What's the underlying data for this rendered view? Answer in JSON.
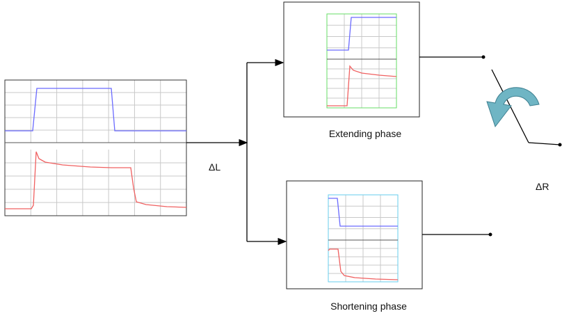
{
  "input_label": "ΔL",
  "output_label": "ΔR",
  "extending": {
    "caption": "Extending phase"
  },
  "shortening": {
    "caption": "Shortening phase"
  }
}
